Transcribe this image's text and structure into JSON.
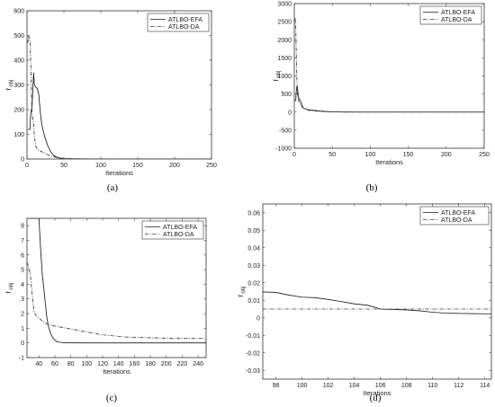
{
  "chart_data": [
    {
      "type": "line",
      "panel_label": "(a)",
      "xlabel": "Iterations",
      "ylabel": "f obj",
      "xlim": [
        0,
        250
      ],
      "ylim": [
        0,
        600
      ],
      "xticks": [
        0,
        50,
        100,
        150,
        200,
        250
      ],
      "yticks": [
        0,
        100,
        200,
        300,
        400,
        500,
        600
      ],
      "legend_position": "top-right",
      "series": [
        {
          "name": "ATLBO-EFA",
          "style": "solid",
          "x": [
            1,
            3,
            4,
            5,
            6,
            7,
            8,
            9,
            10,
            12,
            14,
            16,
            18,
            20,
            24,
            28,
            32,
            36,
            40,
            45,
            50,
            60,
            80,
            120,
            250
          ],
          "y": [
            120,
            120,
            120,
            180,
            200,
            220,
            290,
            350,
            300,
            290,
            285,
            260,
            190,
            140,
            90,
            55,
            30,
            15,
            8,
            3,
            1,
            0.3,
            0.1,
            0,
            0
          ]
        },
        {
          "name": "ATLBO-DA",
          "style": "dashdot",
          "x": [
            1,
            2,
            3,
            4,
            5,
            6,
            7,
            8,
            9,
            10,
            12,
            14,
            16,
            20,
            25,
            30,
            40,
            50,
            80,
            250
          ],
          "y": [
            470,
            500,
            490,
            480,
            400,
            270,
            180,
            160,
            140,
            90,
            50,
            40,
            35,
            30,
            22,
            15,
            6,
            2,
            0.5,
            0
          ]
        }
      ]
    },
    {
      "type": "line",
      "panel_label": "(b)",
      "xlabel": "Iterations",
      "ylabel": "f obj",
      "xlim": [
        0,
        250
      ],
      "ylim": [
        -1000,
        3000
      ],
      "xticks": [
        0,
        50,
        100,
        150,
        200,
        250
      ],
      "yticks": [
        -1000,
        -500,
        0,
        500,
        1000,
        1500,
        2000,
        2500,
        3000
      ],
      "legend_position": "top-right",
      "series": [
        {
          "name": "ATLBO-EFA",
          "style": "solid",
          "x": [
            1,
            2,
            3,
            4,
            5,
            6,
            7,
            8,
            10,
            12,
            15,
            20,
            30,
            40,
            50,
            60,
            80,
            250
          ],
          "y": [
            300,
            350,
            690,
            700,
            500,
            380,
            340,
            320,
            200,
            110,
            80,
            60,
            40,
            20,
            8,
            3,
            0,
            0
          ]
        },
        {
          "name": "ATLBO-DA",
          "style": "dashdot",
          "x": [
            1,
            2,
            3,
            4,
            6,
            8,
            10,
            12,
            16,
            20,
            30,
            40,
            60,
            80,
            250
          ],
          "y": [
            2600,
            2300,
            1200,
            500,
            280,
            200,
            150,
            110,
            70,
            45,
            25,
            12,
            3,
            0,
            0
          ]
        }
      ]
    },
    {
      "type": "line",
      "panel_label": "(c)",
      "xlabel": "Iterations",
      "ylabel": "f obj",
      "xlim": [
        25,
        250
      ],
      "ylim": [
        -1,
        8.5
      ],
      "xticks": [
        40,
        60,
        80,
        100,
        120,
        140,
        160,
        180,
        200,
        220,
        240
      ],
      "yticks": [
        -1,
        0,
        1,
        2,
        3,
        4,
        5,
        6,
        7,
        8
      ],
      "legend_position": "top-right",
      "series": [
        {
          "name": "ATLBO-EFA",
          "style": "solid",
          "x": [
            25,
            33,
            36,
            38,
            40,
            42,
            44,
            46,
            48,
            50,
            52,
            55,
            58,
            62,
            66,
            70,
            80,
            100,
            250
          ],
          "y": [
            8.5,
            8.5,
            8.5,
            8.5,
            8.5,
            6.5,
            4.8,
            3.8,
            2.7,
            1.7,
            1.1,
            0.6,
            0.3,
            0.1,
            0.05,
            0.02,
            0.01,
            0,
            0
          ]
        },
        {
          "name": "ATLBO-DA",
          "style": "dashdot",
          "x": [
            25,
            27,
            29,
            30,
            31,
            32,
            33,
            34,
            36,
            38,
            42,
            46,
            50,
            55,
            60,
            70,
            80,
            100,
            120,
            150,
            180,
            200,
            250
          ],
          "y": [
            5.5,
            5.2,
            4.7,
            4.2,
            3.6,
            3.0,
            2.5,
            2.1,
            1.9,
            1.8,
            1.6,
            1.4,
            1.3,
            1.2,
            1.15,
            1.05,
            0.95,
            0.75,
            0.55,
            0.4,
            0.35,
            0.32,
            0.3
          ]
        }
      ]
    },
    {
      "type": "line",
      "panel_label": "(d)",
      "xlabel": "Iterations",
      "ylabel": "f obj",
      "xlim": [
        97,
        114.5
      ],
      "ylim": [
        -0.035,
        0.065
      ],
      "xticks": [
        98,
        100,
        102,
        104,
        106,
        108,
        110,
        112,
        114
      ],
      "yticks": [
        -0.03,
        -0.02,
        -0.01,
        0,
        0.01,
        0.02,
        0.03,
        0.04,
        0.05,
        0.06
      ],
      "ytick_labels": [
        "-0.03",
        "-0.02",
        "-0.01",
        "0",
        "0.01",
        "0.02",
        "0.03",
        "0.04",
        "0.05",
        "0.06"
      ],
      "legend_position": "top-right",
      "series": [
        {
          "name": "ATLBO-EFA",
          "style": "solid",
          "x": [
            97,
            98,
            99,
            100,
            101,
            102,
            103,
            104,
            105,
            105.5,
            106,
            107,
            108,
            109,
            110,
            111,
            112,
            113,
            114,
            114.5
          ],
          "y": [
            0.0148,
            0.0145,
            0.013,
            0.0118,
            0.0115,
            0.0105,
            0.0093,
            0.008,
            0.0072,
            0.0062,
            0.005,
            0.0048,
            0.0045,
            0.004,
            0.0032,
            0.0027,
            0.0025,
            0.0024,
            0.0023,
            0.0023
          ]
        },
        {
          "name": "ATLBO-DA",
          "style": "dashdot",
          "x": [
            97,
            114.5
          ],
          "y": [
            0.005,
            0.005
          ]
        }
      ]
    }
  ]
}
